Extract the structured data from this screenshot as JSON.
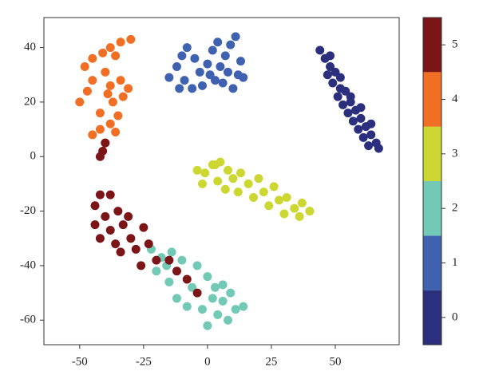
{
  "chart_data": {
    "type": "scatter",
    "xlim": [
      -64,
      75
    ],
    "ylim": [
      -69,
      51
    ],
    "xticks": [
      -50,
      -25,
      0,
      25,
      50
    ],
    "yticks": [
      -60,
      -40,
      -20,
      0,
      20,
      40
    ],
    "series": [
      {
        "color": "#2b2f7d",
        "x": [
          44,
          46,
          48,
          47,
          50,
          49,
          52,
          51,
          54,
          53,
          56,
          55,
          58,
          57,
          60,
          59,
          62,
          61,
          64,
          63,
          66,
          67,
          48,
          52,
          56,
          60,
          64
        ],
        "values": [
          39,
          36,
          33,
          30,
          31,
          27,
          25,
          22,
          24,
          19,
          20,
          16,
          17,
          13,
          14,
          10,
          11,
          7,
          8,
          4,
          5,
          3,
          37,
          29,
          22,
          18,
          12
        ]
      },
      {
        "color": "#3f62b0",
        "x": [
          -15,
          -12,
          -10,
          -8,
          -5,
          -9,
          -6,
          -3,
          0,
          2,
          3,
          5,
          7,
          9,
          11,
          12,
          13,
          14,
          10,
          6,
          -2,
          1,
          8,
          -11,
          4
        ],
        "values": [
          29,
          33,
          37,
          40,
          36,
          28,
          25,
          31,
          34,
          39,
          28,
          33,
          37,
          41,
          44,
          30,
          35,
          29,
          25,
          27,
          26,
          30,
          31,
          25,
          42
        ]
      },
      {
        "color": "#72c9b6",
        "x": [
          -22,
          -18,
          -14,
          -10,
          -20,
          -15,
          -12,
          -8,
          -4,
          0,
          3,
          6,
          9,
          11,
          14,
          8,
          4,
          0,
          -2,
          6,
          -6,
          -16,
          2
        ],
        "values": [
          -34,
          -37,
          -35,
          -38,
          -42,
          -46,
          -52,
          -55,
          -40,
          -44,
          -48,
          -47,
          -50,
          -56,
          -55,
          -60,
          -58,
          -62,
          -56,
          -53,
          -48,
          -40,
          -52
        ]
      },
      {
        "color": "#ccd831",
        "x": [
          -4,
          -1,
          2,
          5,
          8,
          -2,
          4,
          10,
          13,
          16,
          20,
          22,
          26,
          28,
          24,
          31,
          34,
          37,
          40,
          30,
          18,
          12,
          7,
          3,
          36
        ],
        "values": [
          -5,
          -6,
          -3,
          -2,
          -5,
          -10,
          -9,
          -8,
          -6,
          -10,
          -8,
          -13,
          -11,
          -16,
          -18,
          -15,
          -19,
          -17,
          -20,
          -21,
          -15,
          -13,
          -12,
          -3,
          -22
        ]
      },
      {
        "color": "#f06f24",
        "x": [
          -50,
          -47,
          -45,
          -48,
          -45,
          -41,
          -38,
          -34,
          -30,
          -36,
          -40,
          -38,
          -34,
          -37,
          -33,
          -35,
          -38,
          -42,
          -45,
          -40,
          -36,
          -31,
          -42,
          -39
        ],
        "values": [
          20,
          24,
          28,
          33,
          36,
          38,
          40,
          42,
          43,
          37,
          31,
          26,
          28,
          20,
          22,
          15,
          12,
          10,
          8,
          5,
          9,
          25,
          16,
          23
        ]
      },
      {
        "color": "#7b1517",
        "x": [
          -41,
          -42,
          -40,
          -44,
          -42,
          -38,
          -40,
          -44,
          -42,
          -38,
          -35,
          -33,
          -30,
          -34,
          -28,
          -25,
          -23,
          -20,
          -26,
          -15,
          -12,
          -8,
          -4,
          -36,
          -31
        ],
        "values": [
          2,
          0,
          5,
          -18,
          -14,
          -14,
          -22,
          -25,
          -30,
          -27,
          -20,
          -25,
          -30,
          -35,
          -34,
          -26,
          -32,
          -38,
          -40,
          -38,
          -42,
          -45,
          -50,
          -32,
          -22
        ]
      }
    ],
    "colorbar": {
      "lim": [
        -0.5,
        5.5
      ],
      "ticks": [
        0,
        1,
        2,
        3,
        4,
        5
      ],
      "colors": [
        "#2b2f7d",
        "#3f62b0",
        "#72c9b6",
        "#ccd831",
        "#f06f24",
        "#7b1517"
      ]
    }
  }
}
